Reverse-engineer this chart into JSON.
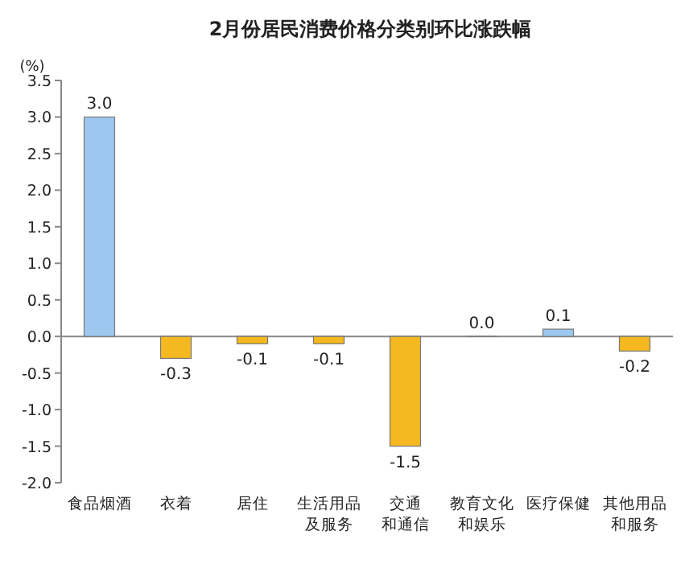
{
  "chart_data": {
    "type": "bar",
    "title": "2月份居民消费价格分类别环比涨跌幅",
    "ylabel": "(%)",
    "categories": [
      "食品烟酒",
      "衣着",
      "居住",
      "生活用品及服务",
      "交通和通信",
      "教育文化和娱乐",
      "医疗保健",
      "其他用品和服务"
    ],
    "values": [
      3.0,
      -0.3,
      -0.1,
      -0.1,
      -1.5,
      0.0,
      0.1,
      -0.2
    ],
    "value_labels": [
      "3.0",
      "-0.3",
      "-0.1",
      "-0.1",
      "-1.5",
      "0.0",
      "0.1",
      "-0.2"
    ],
    "colors": [
      "#9cc8f0",
      "#f5b820",
      "#f5b820",
      "#f5b820",
      "#f5b820",
      "#f5b820",
      "#9cc8f0",
      "#f5b820"
    ],
    "ylim": [
      -2.0,
      3.5
    ],
    "yticks": [
      {
        "value": -2.0,
        "label": "-2.0"
      },
      {
        "value": -1.5,
        "label": "-1.5"
      },
      {
        "value": -1.0,
        "label": "-1.0"
      },
      {
        "value": -0.5,
        "label": "-0.5"
      },
      {
        "value": 0.0,
        "label": "0.0"
      },
      {
        "value": 0.5,
        "label": "0.5"
      },
      {
        "value": 1.0,
        "label": "1.0"
      },
      {
        "value": 1.5,
        "label": "1.5"
      },
      {
        "value": 2.0,
        "label": "2.0"
      },
      {
        "value": 2.5,
        "label": "2.5"
      },
      {
        "value": 3.0,
        "label": "3.0"
      },
      {
        "value": 3.5,
        "label": "3.5"
      }
    ]
  }
}
